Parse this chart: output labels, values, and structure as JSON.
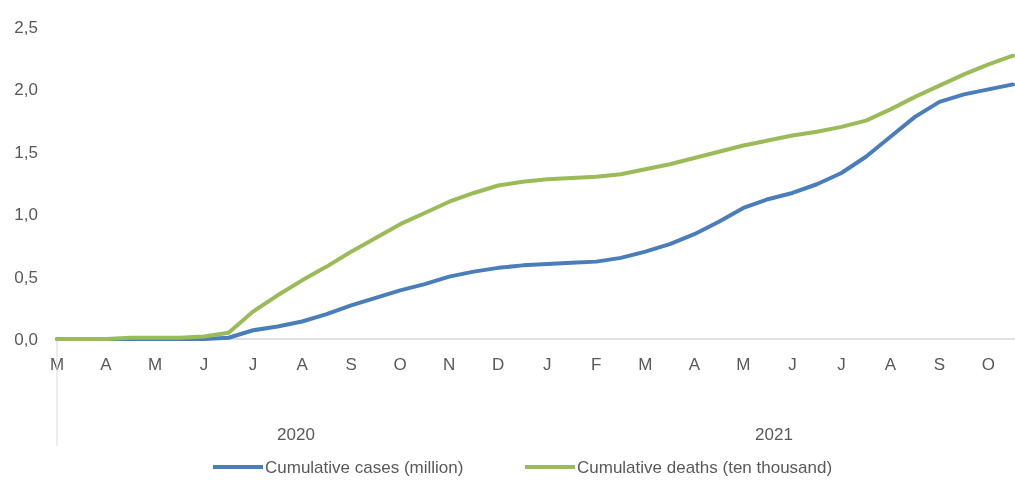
{
  "chart_data": {
    "type": "line",
    "categories": [
      "M",
      null,
      "A",
      null,
      "M",
      null,
      "J",
      null,
      "J",
      null,
      "A",
      null,
      "S",
      null,
      "O",
      null,
      "N",
      null,
      "D",
      null,
      "J",
      null,
      "F",
      null,
      "M",
      null,
      "A",
      null,
      "M",
      null,
      "J",
      null,
      "J",
      null,
      "A",
      null,
      "S",
      null,
      "O",
      null
    ],
    "series": [
      {
        "name": "Cumulative cases (million)",
        "color": "#4a7ebb",
        "values": [
          0,
          0,
          0,
          0,
          0,
          0,
          0,
          0.01,
          0.07,
          0.1,
          0.14,
          0.2,
          0.27,
          0.33,
          0.39,
          0.44,
          0.5,
          0.54,
          0.57,
          0.59,
          0.6,
          0.61,
          0.62,
          0.65,
          0.7,
          0.76,
          0.84,
          0.94,
          1.05,
          1.12,
          1.17,
          1.24,
          1.33,
          1.46,
          1.62,
          1.78,
          1.9,
          1.96,
          2.0,
          2.04
        ]
      },
      {
        "name": "Cumulative deaths (ten thousand)",
        "color": "#9bbb59",
        "values": [
          0,
          0,
          0,
          0.01,
          0.01,
          0.01,
          0.02,
          0.05,
          0.22,
          0.35,
          0.47,
          0.58,
          0.7,
          0.81,
          0.92,
          1.01,
          1.1,
          1.17,
          1.23,
          1.26,
          1.28,
          1.29,
          1.3,
          1.32,
          1.36,
          1.4,
          1.45,
          1.5,
          1.55,
          1.59,
          1.63,
          1.66,
          1.7,
          1.75,
          1.84,
          1.94,
          2.03,
          2.12,
          2.2,
          2.27
        ]
      }
    ],
    "ylim": [
      0,
      2.5
    ],
    "yticks": [
      {
        "value": 0,
        "label": "0,0"
      },
      {
        "value": 0.5,
        "label": "0,5"
      },
      {
        "value": 1,
        "label": "1,0"
      },
      {
        "value": 1.5,
        "label": "1,5"
      },
      {
        "value": 2,
        "label": "2,0"
      },
      {
        "value": 2.5,
        "label": "2,5"
      }
    ],
    "annotations": [
      "2020",
      "2021"
    ],
    "legend": "bottom",
    "marker": "none",
    "line_style": "solid"
  }
}
